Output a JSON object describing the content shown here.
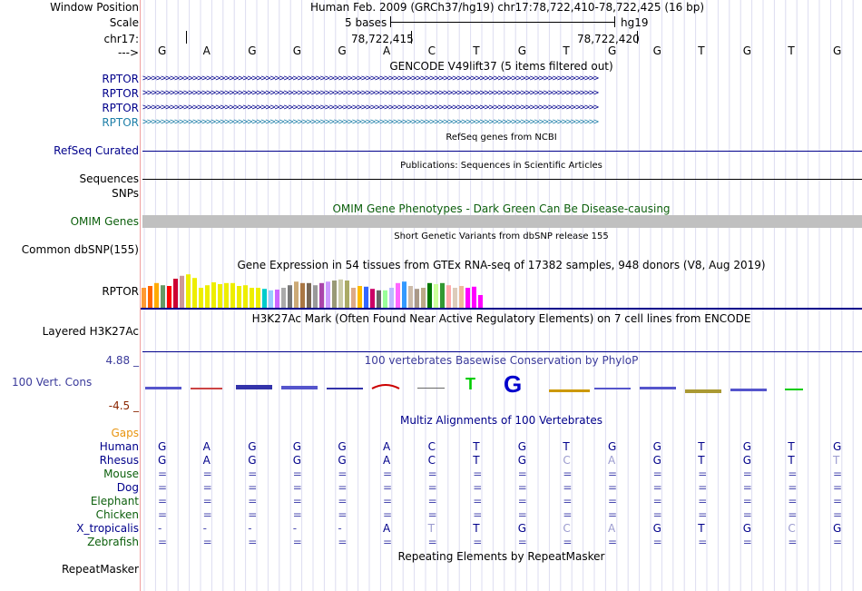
{
  "colors": {
    "navy": "#00008b",
    "ensembl": "#1e7fa8",
    "green": "#0c5f0c",
    "orange": "#e8940f",
    "darkred": "#8b2500",
    "grey": "#c0c0c0",
    "pink": "#e0a0a0"
  },
  "header": {
    "window_position_label": "Window Position",
    "window_position_value": "Human Feb. 2009 (GRCh37/hg19)   chr17:78,722,410-78,722,425 (16 bp)",
    "scale_label": "Scale",
    "scale_text": "5 bases",
    "scale_assembly": "hg19",
    "chrom_label": "chr17:",
    "coord_1": "78,722,415",
    "coord_2": "78,722,420",
    "strand_label": "--->",
    "bases": [
      "G",
      "A",
      "G",
      "G",
      "G",
      "A",
      "C",
      "T",
      "G",
      "T",
      "G",
      "G",
      "T",
      "G",
      "T",
      "G"
    ]
  },
  "tracks": {
    "gencode_title": "GENCODE V49lift37 (5 items filtered out)",
    "gene_rows": [
      "RPTOR",
      "RPTOR",
      "RPTOR",
      "RPTOR"
    ],
    "arrow_text": ">>>>>>>>>>>>>>>>>>>>>>>>>>>>>>>>>>>>>>>>>>>>>>>>>>>>>>>>>>>>>>>>>>>>>>>>>>>>>>>>>>>>>>>>>>>>>>>>>>>>",
    "refseq_title": "RefSeq genes from NCBI",
    "refseq_label": "RefSeq Curated",
    "pubs_title": "Publications: Sequences in Scientific Articles",
    "pubs_label": "Sequences",
    "snps_label": "SNPs",
    "omim_title": "OMIM Gene Phenotypes - Dark Green Can Be Disease-causing",
    "omim_label": "OMIM Genes",
    "dbsnp_title": "Short Genetic Variants from dbSNP release 155",
    "dbsnp_label": "Common dbSNP(155)",
    "gtex_title": "Gene Expression in 54 tissues from GTEx RNA-seq of 17382 samples, 948 donors (V8, Aug 2019)",
    "gtex_label": "RPTOR",
    "h3k_title": "H3K27Ac Mark (Often Found Near Active Regulatory Elements) on 7 cell lines from ENCODE",
    "h3k_label": "Layered H3K27Ac",
    "cons_title": "100 vertebrates Basewise Conservation by PhyloP",
    "cons_label": "100 Vert. Cons",
    "cons_max": "4.88 _",
    "cons_min": "-4.5 _",
    "multiz_title": "Multiz Alignments of 100 Vertebrates",
    "gaps_label": "Gaps",
    "rmsk_title": "Repeating Elements by RepeatMasker",
    "rmsk_label": "RepeatMasker"
  },
  "gtex_values": [
    0.55,
    0.6,
    0.68,
    0.62,
    0.6,
    0.8,
    0.88,
    0.92,
    0.82,
    0.55,
    0.62,
    0.7,
    0.65,
    0.68,
    0.68,
    0.6,
    0.62,
    0.55,
    0.55,
    0.52,
    0.48,
    0.5,
    0.55,
    0.62,
    0.72,
    0.68,
    0.68,
    0.62,
    0.68,
    0.72,
    0.75,
    0.78,
    0.75,
    0.55,
    0.6,
    0.58,
    0.52,
    0.48,
    0.48,
    0.55,
    0.68,
    0.72,
    0.6,
    0.52,
    0.55,
    0.68,
    0.65,
    0.68,
    0.62,
    0.55,
    0.6,
    0.55,
    0.58,
    0.35
  ],
  "gtex_colors": [
    "#ff9933",
    "#ff6600",
    "#ffaa00",
    "#669966",
    "#ff0000",
    "#cc0033",
    "#cc9999",
    "#eeee00",
    "#eeee00",
    "#eeee00",
    "#eeee00",
    "#eeee00",
    "#eeee00",
    "#eeee00",
    "#eeee00",
    "#eeee00",
    "#eeee00",
    "#eeee00",
    "#eeee00",
    "#00cccc",
    "#99ccff",
    "#cc66ff",
    "#aaaaaa",
    "#777777",
    "#ccaa77",
    "#aa7744",
    "#776655",
    "#999999",
    "#aa44aa",
    "#cc99ff",
    "#999977",
    "#ccccaa",
    "#aaaa66",
    "#ddaa88",
    "#ffbb00",
    "#3366ff",
    "#cc0066",
    "#666666",
    "#99ff99",
    "#bbbbff",
    "#ff66ff",
    "#3399ff",
    "#ccbbaa",
    "#aa9988",
    "#bbaa88",
    "#007700",
    "#ccff99",
    "#339933",
    "#ffaaaa",
    "#ddccbb",
    "#eebb99",
    "#ff00ff",
    "#ff00ff",
    "#ff00ff"
  ],
  "alignment": {
    "species": [
      "Human",
      "Rhesus",
      "Mouse",
      "Dog",
      "Elephant",
      "Chicken",
      "X_tropicalis",
      "Zebrafish"
    ],
    "species_colors": [
      "#00008b",
      "#00008b",
      "#0c5f0c",
      "#00008b",
      "#0c5f0c",
      "#0c5f0c",
      "#00008b",
      "#0c5f0c"
    ],
    "rows": [
      [
        "G",
        "A",
        "G",
        "G",
        "G",
        "A",
        "C",
        "T",
        "G",
        "T",
        "G",
        "G",
        "T",
        "G",
        "T",
        "G"
      ],
      [
        "G",
        "A",
        "G",
        "G",
        "G",
        "A",
        "C",
        "T",
        "G",
        "C",
        "A",
        "G",
        "T",
        "G",
        "T",
        "T"
      ],
      [
        "=",
        "=",
        "=",
        "=",
        "=",
        "=",
        "=",
        "=",
        "=",
        "=",
        "=",
        "=",
        "=",
        "=",
        "=",
        "="
      ],
      [
        "=",
        "=",
        "=",
        "=",
        "=",
        "=",
        "=",
        "=",
        "=",
        "=",
        "=",
        "=",
        "=",
        "=",
        "=",
        "="
      ],
      [
        "=",
        "=",
        "=",
        "=",
        "=",
        "=",
        "=",
        "=",
        "=",
        "=",
        "=",
        "=",
        "=",
        "=",
        "=",
        "="
      ],
      [
        "=",
        "=",
        "=",
        "=",
        "=",
        "=",
        "=",
        "=",
        "=",
        "=",
        "=",
        "=",
        "=",
        "=",
        "=",
        "="
      ],
      [
        "-",
        "-",
        "-",
        "-",
        "-",
        "A",
        "T",
        "T",
        "G",
        "C",
        "A",
        "G",
        "T",
        "G",
        "C",
        "G"
      ],
      [
        "=",
        "=",
        "=",
        "=",
        "=",
        "=",
        "=",
        "=",
        "=",
        "=",
        "=",
        "=",
        "=",
        "=",
        "=",
        "="
      ]
    ],
    "faint": [
      [],
      [
        9,
        10,
        15
      ],
      [],
      [],
      [],
      [],
      [
        6,
        9,
        10,
        14
      ],
      []
    ]
  }
}
